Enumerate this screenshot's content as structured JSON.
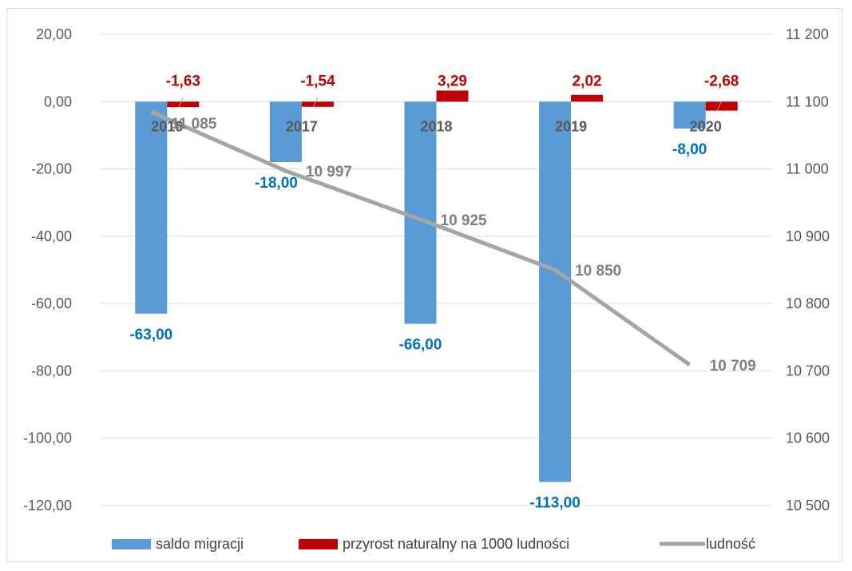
{
  "chart_data": {
    "type": "bar",
    "title": "",
    "categories": [
      "2016",
      "2017",
      "2018",
      "2019",
      "2020"
    ],
    "y_left": {
      "ticks": [
        "20,00",
        "0,00",
        "-20,00",
        "-40,00",
        "-60,00",
        "-80,00",
        "-100,00",
        "-120,00"
      ],
      "range": [
        -120,
        20
      ]
    },
    "y_right": {
      "ticks": [
        "11 200",
        "11 100",
        "11 000",
        "10 900",
        "10 800",
        "10 700",
        "10 600",
        "10 500"
      ],
      "range": [
        10500,
        11200
      ]
    },
    "series": [
      {
        "name": "saldo migracji",
        "type": "bar",
        "axis": "left",
        "color": "#5b9bd5",
        "label_color": "#0070c0",
        "values": [
          -63,
          -18,
          -66,
          -113,
          -8
        ],
        "labels": [
          "-63,00",
          "-18,00",
          "-66,00",
          "-113,00",
          "-8,00"
        ]
      },
      {
        "name": "przyrost naturalny na 1000 ludności",
        "type": "bar",
        "axis": "left",
        "color": "#c00000",
        "label_color": "#c00000",
        "values": [
          -1.63,
          -1.54,
          3.29,
          2.02,
          -2.68
        ],
        "labels": [
          "-1,63",
          "-1,54",
          "3,29",
          "2,02",
          "-2,68"
        ]
      },
      {
        "name": "ludność",
        "type": "line",
        "axis": "right",
        "color": "#a5a5a5",
        "label_color": "#7f7f7f",
        "values": [
          11085,
          10997,
          10925,
          10850,
          10709
        ],
        "labels": [
          "11 085",
          "10 997",
          "10 925",
          "10 850",
          "10 709"
        ]
      }
    ],
    "grid": true,
    "legend_position": "bottom"
  }
}
